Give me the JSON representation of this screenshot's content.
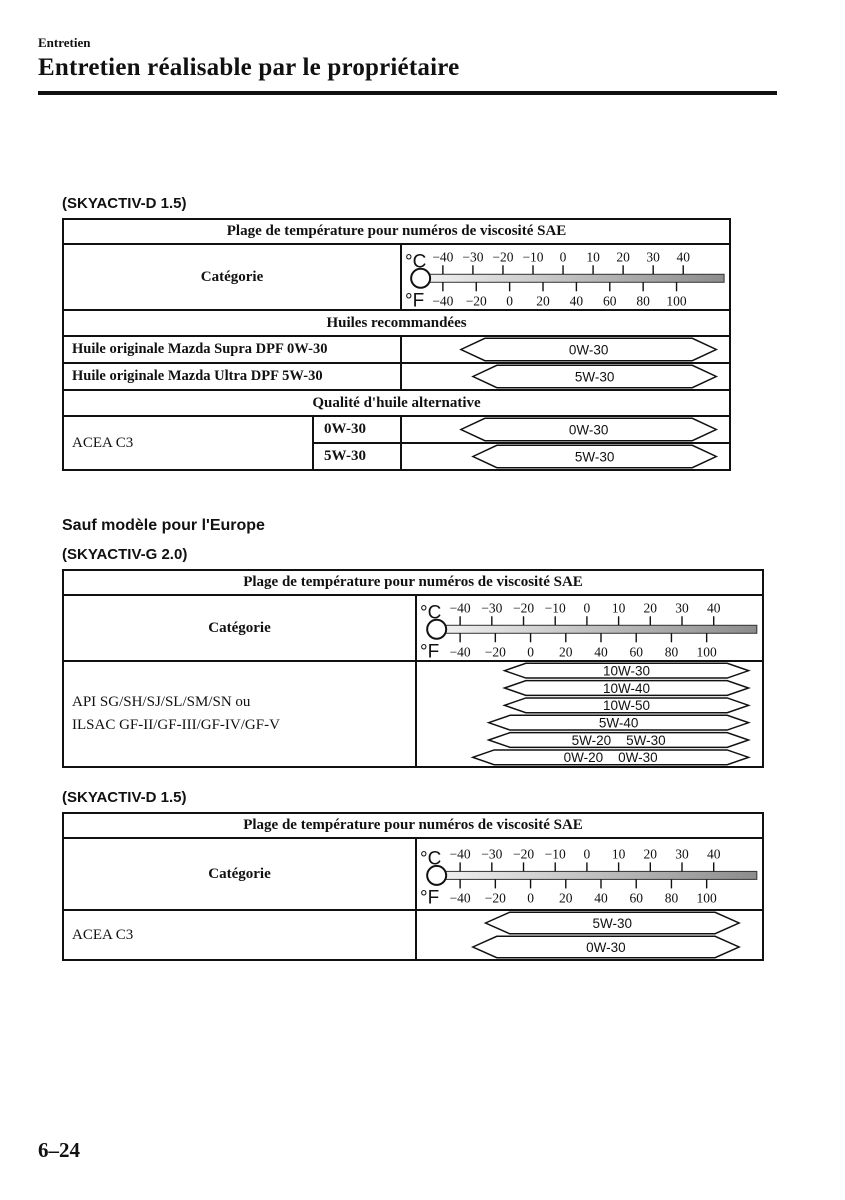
{
  "page": {
    "eyebrow": "Entretien",
    "title": "Entretien réalisable par le propriétaire",
    "page_number": "6–24"
  },
  "scale": {
    "c_unit": "°C",
    "f_unit": "°F",
    "c_ticks": [
      -40,
      -30,
      -20,
      -10,
      0,
      10,
      20,
      30,
      40
    ],
    "f_ticks": [
      -40,
      -20,
      0,
      20,
      40,
      60,
      80,
      100
    ]
  },
  "t1": {
    "label": "(SKYACTIV-D 1.5)",
    "header": "Plage de température pour numéros de viscosité SAE",
    "category": "Catégorie",
    "rec_header": "Huiles recommandées",
    "rec_rows": [
      {
        "name": "Huile originale Mazda Supra DPF 0W-30",
        "bar": {
          "labels": [
            "0W-30"
          ],
          "range_c": [
            -34,
            51
          ]
        }
      },
      {
        "name": "Huile originale Mazda Ultra DPF 5W-30",
        "bar": {
          "labels": [
            "5W-30"
          ],
          "range_c": [
            -30,
            51
          ]
        }
      }
    ],
    "alt_header": "Qualité d'huile alternative",
    "alt_label": "ACEA C3",
    "alt_rows": [
      {
        "grade": "0W-30",
        "bar": {
          "labels": [
            "0W-30"
          ],
          "range_c": [
            -34,
            51
          ]
        }
      },
      {
        "grade": "5W-30",
        "bar": {
          "labels": [
            "5W-30"
          ],
          "range_c": [
            -30,
            51
          ]
        }
      }
    ]
  },
  "europe_note": "Sauf modèle pour l'Europe",
  "t2": {
    "label": "(SKYACTIV-G 2.0)",
    "header": "Plage de température pour numéros de viscosité SAE",
    "category": "Catégorie",
    "body_lines": [
      "API SG/SH/SJ/SL/SM/SN ou",
      "ILSAC GF-II/GF-III/GF-IV/GF-V"
    ],
    "bars": [
      {
        "labels": [
          "10W-30"
        ],
        "range_c": [
          -26,
          51
        ]
      },
      {
        "labels": [
          "10W-40"
        ],
        "range_c": [
          -26,
          51
        ]
      },
      {
        "labels": [
          "10W-50"
        ],
        "range_c": [
          -26,
          51
        ]
      },
      {
        "labels": [
          "5W-40"
        ],
        "range_c": [
          -31,
          51
        ]
      },
      {
        "labels": [
          "5W-20",
          "5W-30"
        ],
        "range_c": [
          -31,
          51
        ]
      },
      {
        "labels": [
          "0W-20",
          "0W-30"
        ],
        "range_c": [
          -36,
          51
        ]
      }
    ]
  },
  "t3": {
    "label": "(SKYACTIV-D 1.5)",
    "header": "Plage de température pour numéros de viscosité SAE",
    "category": "Catégorie",
    "body_label": "ACEA C3",
    "bars": [
      {
        "labels": [
          "5W-30"
        ],
        "range_c": [
          -32,
          48
        ]
      },
      {
        "labels": [
          "0W-30"
        ],
        "range_c": [
          -36,
          48
        ]
      }
    ]
  },
  "colors": {
    "ink": "#111111",
    "bar_gradient_start": "#f2f2f2",
    "bar_gradient_end": "#8c8c8c"
  }
}
